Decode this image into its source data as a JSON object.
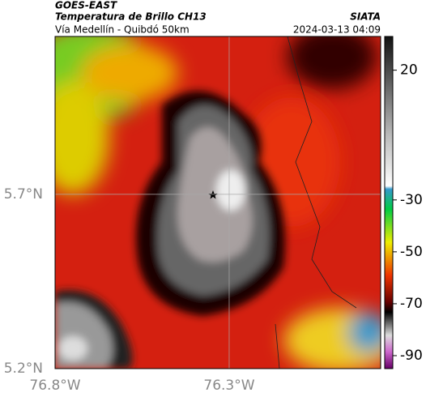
{
  "header": {
    "source": "GOES-EAST",
    "title": "Temperatura de Brillo CH13",
    "brand": "SIATA",
    "subtitle": "Vía Medellín - Quibdó 50km",
    "timestamp": "2024-03-13 04:09"
  },
  "map": {
    "xlim": [
      -76.8,
      -75.865
    ],
    "ylim": [
      5.2,
      6.153
    ],
    "xticks": [
      {
        "value": -76.8,
        "label": "76.8°W"
      },
      {
        "value": -76.3,
        "label": "76.3°W"
      }
    ],
    "yticks": [
      {
        "value": 5.2,
        "label": "5.2°N"
      },
      {
        "value": 5.7,
        "label": "5.7°N"
      }
    ]
  },
  "colorbar": {
    "lim": [
      -95,
      33
    ],
    "ticks": [
      20,
      -30,
      -50,
      -70,
      -90
    ]
  }
}
